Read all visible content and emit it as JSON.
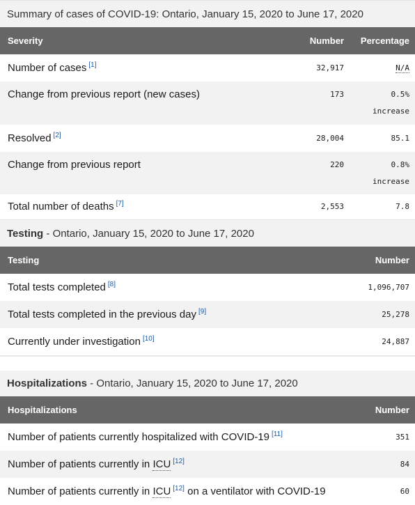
{
  "table1": {
    "caption": "Summary of cases of COVID-19: Ontario, January 15, 2020 to June 17, 2020",
    "headers": {
      "label": "Severity",
      "number": "Number",
      "percent": "Percentage"
    },
    "rows": [
      {
        "label": "Number of cases",
        "ref": "[1]",
        "number": "32,917",
        "percent": "N/A",
        "percent2": ""
      },
      {
        "label": "Change from previous report (new cases)",
        "ref": "",
        "number": "173",
        "percent": "0.5%",
        "percent2": "increase"
      },
      {
        "label": "Resolved",
        "ref": "[2]",
        "number": "28,004",
        "percent": "85.1",
        "percent2": ""
      },
      {
        "label": "Change from previous report",
        "ref": "",
        "number": "220",
        "percent": "0.8%",
        "percent2": "increase"
      },
      {
        "label": "Total number of deaths",
        "ref": "[7]",
        "number": "2,553",
        "percent": "7.8",
        "percent2": ""
      }
    ]
  },
  "table2": {
    "caption_bold": "Testing",
    "caption_rest": " - Ontario, January 15, 2020 to June 17, 2020",
    "headers": {
      "label": "Testing",
      "number": "Number"
    },
    "rows": [
      {
        "label": "Total tests completed",
        "ref": "[8]",
        "number": "1,096,707"
      },
      {
        "label": "Total tests completed in the previous day",
        "ref": "[9]",
        "number": "25,278"
      },
      {
        "label": "Currently under investigation",
        "ref": "[10]",
        "number": "24,887"
      }
    ]
  },
  "table3": {
    "caption_bold": "Hospitalizations",
    "caption_rest": " - Ontario, January 15, 2020 to June 17, 2020",
    "headers": {
      "label": "Hospitalizations",
      "number": "Number"
    },
    "rows": [
      {
        "label": "Number of patients currently hospitalized with COVID-19",
        "ref": "[11]",
        "number": "351"
      },
      {
        "label_pre": "Number of patients currently in ",
        "abbr": "ICU",
        "ref": "[12]",
        "label_post": "",
        "number": "84"
      },
      {
        "label_pre": "Number of patients currently in ",
        "abbr": "ICU",
        "ref": "[12]",
        "label_post": " on a ventilator with COVID-19",
        "number": "60"
      }
    ]
  }
}
